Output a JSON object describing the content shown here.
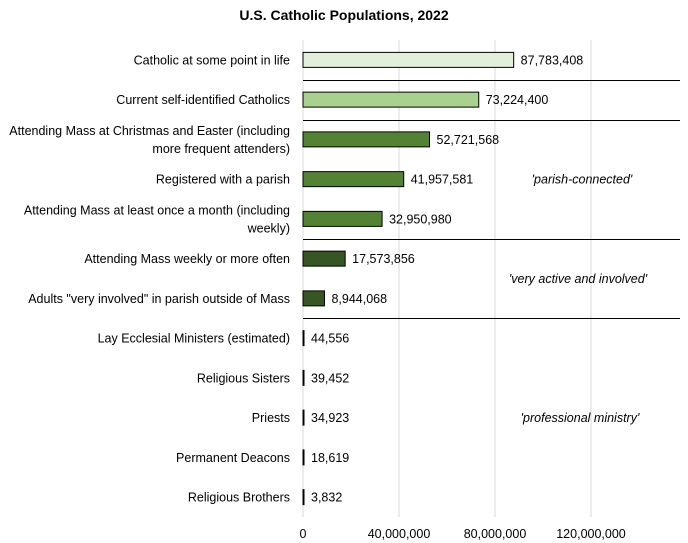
{
  "chart_data": {
    "type": "bar",
    "orientation": "horizontal",
    "title": "U.S. Catholic Populations, 2022",
    "xlabel": "",
    "ylabel": "",
    "xlim": [
      0,
      150000000
    ],
    "grid": true,
    "xticks": [
      0,
      40000000,
      80000000,
      120000000
    ],
    "xtick_labels": [
      "0",
      "40,000,000",
      "80,000,000",
      "120,000,000"
    ],
    "categories": [
      [
        "Catholic at some point in life"
      ],
      [
        "Current self-identified Catholics"
      ],
      [
        "Attending Mass at Christmas and Easter (including",
        "more frequent attenders)"
      ],
      [
        "Registered with a parish"
      ],
      [
        "Attending Mass at least once a month (including",
        "weekly)"
      ],
      [
        "Attending Mass weekly or more often"
      ],
      [
        "Adults \"very involved\" in parish outside of Mass"
      ],
      [
        "Lay Ecclesial Ministers (estimated)"
      ],
      [
        "Religious Sisters"
      ],
      [
        "Priests"
      ],
      [
        "Permanent Deacons"
      ],
      [
        "Religious Brothers"
      ]
    ],
    "values": [
      87783408,
      73224400,
      52721568,
      41957581,
      32950980,
      17573856,
      8944068,
      44556,
      39452,
      34923,
      18619,
      3832
    ],
    "value_labels": [
      "87,783,408",
      "73,224,400",
      "52,721,568",
      "41,957,581",
      "32,950,980",
      "17,573,856",
      "8,944,068",
      "44,556",
      "39,452",
      "34,923",
      "18,619",
      "3,832"
    ],
    "colors": [
      "#e2efda",
      "#a9d08e",
      "#548235",
      "#548235",
      "#548235",
      "#375623",
      "#375623",
      "#000000",
      "#000000",
      "#000000",
      "#000000",
      "#000000"
    ],
    "separators_after_index": [
      0,
      1,
      4,
      6
    ],
    "group_annotations": [
      {
        "text": "'parish-connected'",
        "rows": [
          2,
          4
        ]
      },
      {
        "text": "'very active and involved'",
        "rows": [
          5,
          6
        ]
      },
      {
        "text": "'professional ministry'",
        "rows": [
          7,
          11
        ]
      }
    ]
  }
}
